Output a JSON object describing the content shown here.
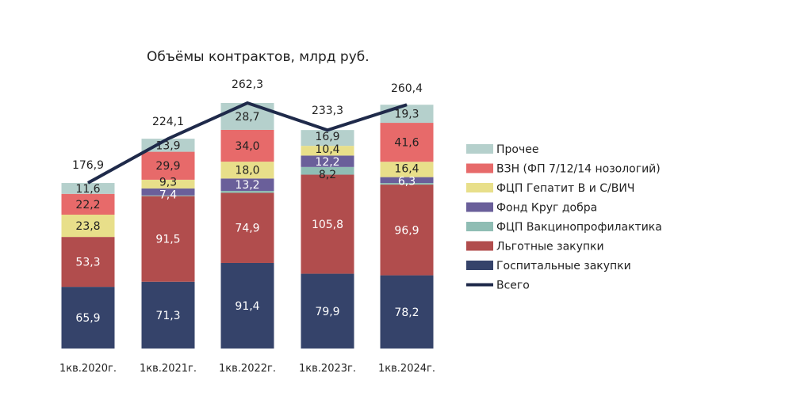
{
  "chart_data": {
    "type": "bar",
    "stacked": true,
    "title": "Объёмы контрактов, млрд руб.",
    "categories": [
      "1кв.2020г.",
      "1кв.2021г.",
      "1кв.2022г.",
      "1кв.2023г.",
      "1кв.2024г."
    ],
    "series": [
      {
        "name": "Госпитальные закупки",
        "color": "#35436a",
        "values": [
          65.9,
          71.3,
          91.4,
          79.9,
          78.2
        ],
        "labels": [
          "65,9",
          "71,3",
          "91,4",
          "79,9",
          "78,2"
        ]
      },
      {
        "name": "Льготные закупки",
        "color": "#b14d4d",
        "values": [
          53.3,
          91.5,
          74.9,
          105.8,
          96.9
        ],
        "labels": [
          "53,3",
          "91,5",
          "74,9",
          "105,8",
          "96,9"
        ]
      },
      {
        "name": "ФЦП Вакцинопрофилактика",
        "color": "#8fbdb4",
        "values": [
          0,
          0.8,
          2.1,
          8.2,
          1.7
        ],
        "labels": [
          "",
          "",
          "",
          "8,2",
          ""
        ]
      },
      {
        "name": "Фонд Круг добра",
        "color": "#6a5f9a",
        "values": [
          0,
          7.4,
          13.2,
          12.2,
          6.3
        ],
        "labels": [
          "",
          "7,4",
          "13,2",
          "12,2",
          "6,3"
        ]
      },
      {
        "name": "ФЦП Гепатит В и С/ВИЧ",
        "color": "#e8df8a",
        "values": [
          23.8,
          9.3,
          18.0,
          10.4,
          16.4
        ],
        "labels": [
          "23,8",
          "9,3",
          "18,0",
          "10,4",
          "16,4"
        ]
      },
      {
        "name": "ВЗН (ФП 7/12/14 нозологий)",
        "color": "#e76a6a",
        "values": [
          22.2,
          29.9,
          34.0,
          0,
          41.6
        ],
        "labels": [
          "22,2",
          "29,9",
          "34,0",
          "",
          "41,6"
        ]
      },
      {
        "name": "Прочее",
        "color": "#b5d0cc",
        "values": [
          11.6,
          13.9,
          28.7,
          16.9,
          19.3
        ],
        "labels": [
          "11,6",
          "13,9",
          "28,7",
          "16,9",
          "19,3"
        ]
      }
    ],
    "line": {
      "name": "Всего",
      "color": "#1f2a4a",
      "values": [
        176.9,
        224.1,
        262.3,
        233.3,
        260.4
      ],
      "labels": [
        "176,9",
        "224,1",
        "262,3",
        "233,3",
        "260,4"
      ]
    },
    "legend_order": [
      "Прочее",
      "ВЗН (ФП 7/12/14 нозологий)",
      "ФЦП Гепатит В и С/ВИЧ",
      "Фонд Круг добра",
      "ФЦП Вакцинопрофилактика",
      "Льготные закупки",
      "Госпитальные закупки",
      "Всего"
    ],
    "legend_position": "right",
    "grid": false
  }
}
